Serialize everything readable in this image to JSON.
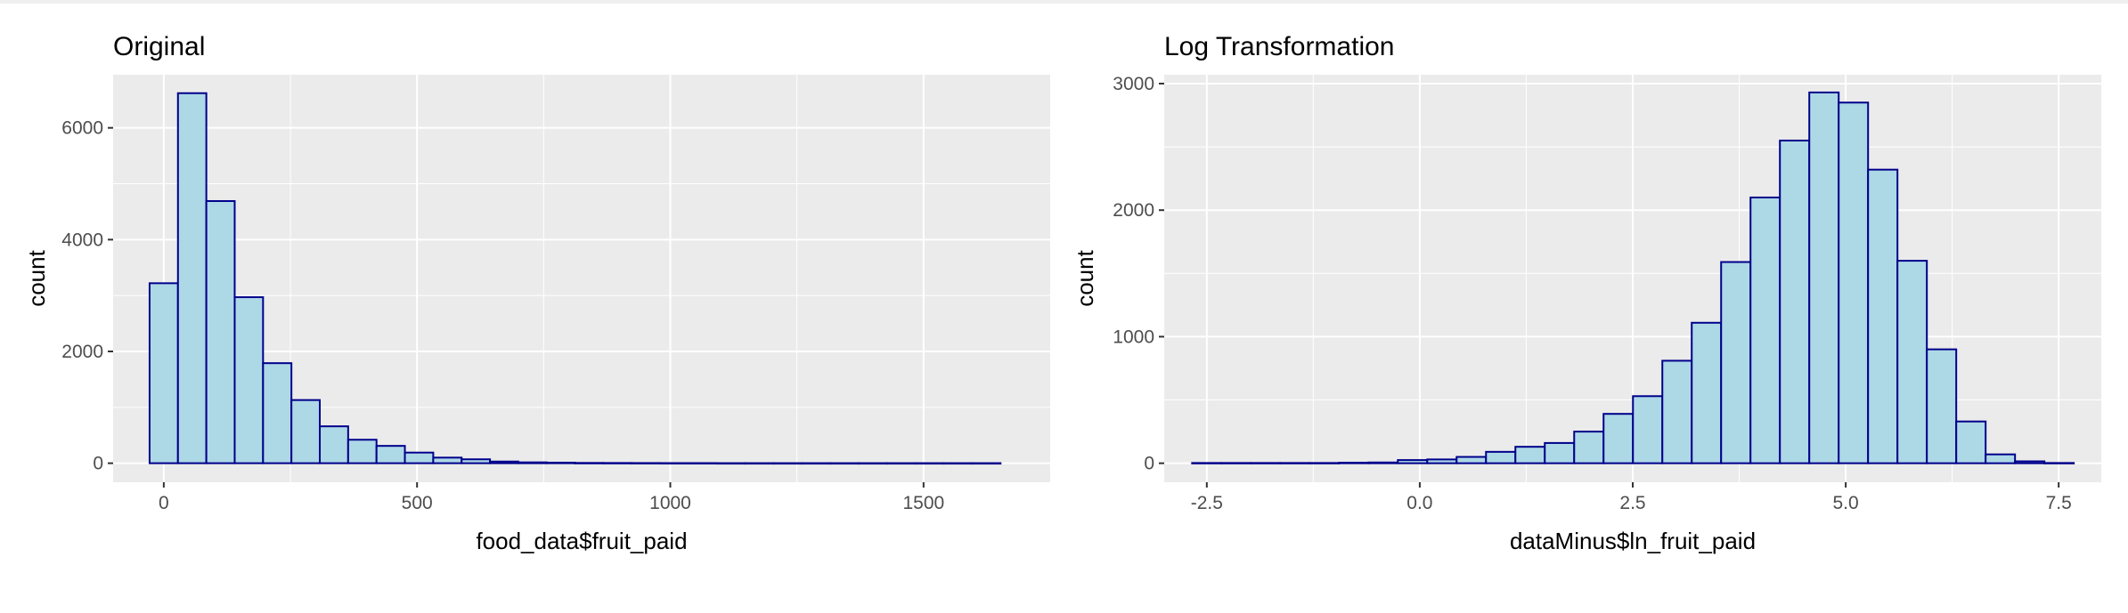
{
  "chart_data": [
    {
      "type": "bar",
      "title": "Original",
      "xlabel": "food_data$fruit_paid",
      "ylabel": "count",
      "binwidth": 56,
      "bin_centers": [
        0,
        56,
        112,
        168,
        224,
        280,
        336,
        392,
        448,
        504,
        560,
        616,
        672,
        728,
        784,
        840,
        896,
        952,
        1008,
        1064,
        1120,
        1176,
        1232,
        1288,
        1344,
        1400,
        1456,
        1512,
        1568,
        1624
      ],
      "values": [
        3220,
        6620,
        4690,
        2970,
        1790,
        1130,
        660,
        420,
        310,
        190,
        100,
        70,
        30,
        15,
        10,
        5,
        4,
        3,
        2,
        2,
        1,
        1,
        1,
        1,
        1,
        1,
        1,
        1,
        1,
        1
      ],
      "xlim": [
        -100,
        1750
      ],
      "ylim": [
        -340,
        6950
      ],
      "xticks": [
        0,
        500,
        1000,
        1500
      ],
      "xtick_labels": [
        "0",
        "500",
        "1000",
        "1500"
      ],
      "yticks": [
        0,
        2000,
        4000,
        6000
      ],
      "ytick_labels": [
        "0",
        "2000",
        "4000",
        "6000"
      ],
      "grid": true,
      "fill_color": "#add8e6",
      "stroke_color": "#00008b",
      "panel_color": "#ebebeb"
    },
    {
      "type": "bar",
      "title": "Log Transformation",
      "xlabel": "dataMinus$ln_fruit_paid",
      "ylabel": "count",
      "binwidth": 0.345,
      "bin_centers": [
        -2.5,
        -2.155,
        -1.81,
        -1.465,
        -1.12,
        -0.775,
        -0.43,
        -0.085,
        0.26,
        0.605,
        0.95,
        1.295,
        1.64,
        1.985,
        2.33,
        2.675,
        3.02,
        3.365,
        3.71,
        4.055,
        4.4,
        4.745,
        5.09,
        5.435,
        5.78,
        6.125,
        6.47,
        6.815,
        7.16,
        7.505
      ],
      "values": [
        2,
        2,
        2,
        2,
        2,
        4,
        6,
        25,
        30,
        50,
        90,
        130,
        160,
        250,
        390,
        530,
        810,
        1110,
        1590,
        2100,
        2550,
        2930,
        2850,
        2320,
        1600,
        900,
        330,
        70,
        15,
        2
      ],
      "xlim": [
        -3.0,
        8.0
      ],
      "ylim": [
        -150,
        3070
      ],
      "xticks": [
        -2.5,
        0.0,
        2.5,
        5.0,
        7.5
      ],
      "xtick_labels": [
        "-2.5",
        "0.0",
        "2.5",
        "5.0",
        "7.5"
      ],
      "yticks": [
        0,
        1000,
        2000,
        3000
      ],
      "ytick_labels": [
        "0",
        "1000",
        "2000",
        "3000"
      ],
      "grid": true,
      "fill_color": "#add8e6",
      "stroke_color": "#00008b",
      "panel_color": "#ebebeb"
    }
  ]
}
